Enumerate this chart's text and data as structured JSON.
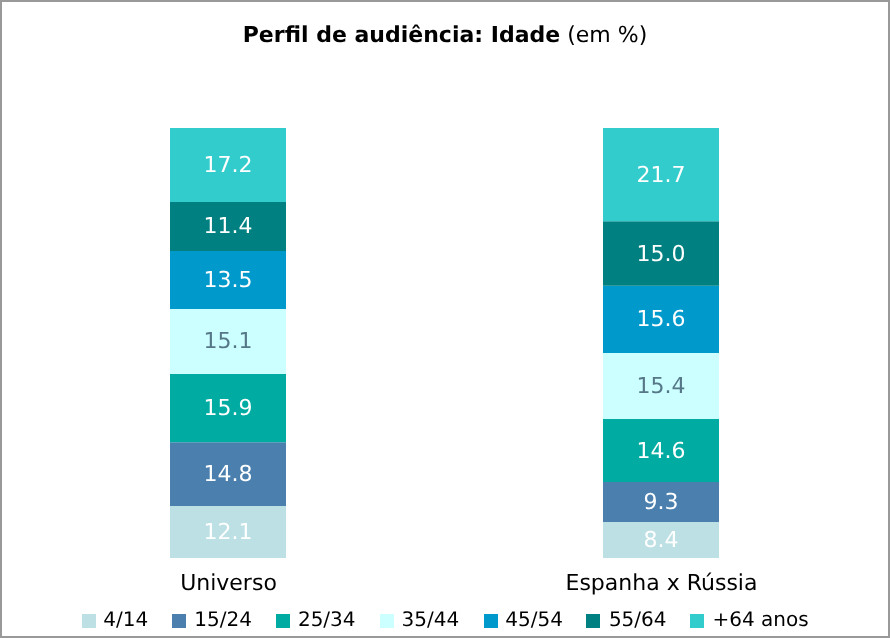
{
  "chart_data": {
    "type": "bar",
    "title": "Perfil de audiência: Idade",
    "subtitle": "(em %)",
    "categories": [
      "Universo",
      "Espanha x Rússia"
    ],
    "stacked": true,
    "data_labels": true,
    "legend": "bottom",
    "grid": false,
    "series": [
      {
        "name": "4/14",
        "color": "#bde0e4",
        "values": [
          12.1,
          8.4
        ]
      },
      {
        "name": "15/24",
        "color": "#4a7fae",
        "values": [
          14.8,
          9.3
        ]
      },
      {
        "name": "25/34",
        "color": "#00aba2",
        "values": [
          15.9,
          14.6
        ]
      },
      {
        "name": "35/44",
        "color": "#ccffff",
        "values": [
          15.1,
          15.4
        ]
      },
      {
        "name": "45/54",
        "color": "#0099cc",
        "values": [
          13.5,
          15.6
        ]
      },
      {
        "name": "55/64",
        "color": "#008080",
        "values": [
          11.4,
          15.0
        ],
        "value_labels": [
          "11.4",
          "15.0"
        ]
      },
      {
        "name": "+64 anos",
        "color": "#33cccc",
        "values": [
          17.2,
          21.7
        ]
      }
    ]
  }
}
